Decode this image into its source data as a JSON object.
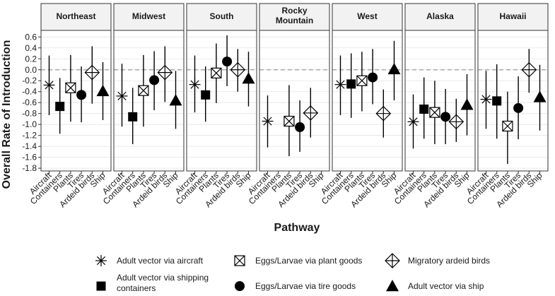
{
  "chart_data": {
    "type": "scatter",
    "subtype": "point-range faceted",
    "ylabel": "Overall Rate of Introduction",
    "xlabel": "Pathway",
    "ylim": [
      -1.85,
      0.72
    ],
    "yticks": [
      0.6,
      0.4,
      0.2,
      0.0,
      -0.2,
      -0.4,
      -0.6,
      -0.8,
      -1.0,
      -1.2,
      -1.4,
      -1.6,
      -1.8
    ],
    "ytick_labels": [
      "0.6",
      "0.4",
      "0.2",
      "0.0",
      "-0.2",
      "-0.4",
      "-0.6",
      "-0.8",
      "-1.0",
      "-1.2",
      "-1.4",
      "-1.6",
      "-1.8"
    ],
    "reference_line": 0.0,
    "categories": [
      "Aircraft",
      "Containers",
      "Plants",
      "Tires",
      "Ardeid birds",
      "Ship"
    ],
    "legend": [
      {
        "key": "aircraft",
        "label": "Adult vector via aircraft"
      },
      {
        "key": "plants",
        "label": "Eggs/Larvae via plant goods"
      },
      {
        "key": "ardeid",
        "label": "Migratory ardeid birds"
      },
      {
        "key": "containers",
        "label_lines": [
          "Adult vector via shipping",
          "containers"
        ]
      },
      {
        "key": "tires",
        "label": "Eggs/Larvae via tire goods"
      },
      {
        "key": "ship",
        "label": "Adult vector via ship"
      }
    ],
    "panels": [
      {
        "name": "Northeast",
        "points": [
          {
            "pathway": "Aircraft",
            "y": -0.28,
            "lo": -0.83,
            "hi": 0.26
          },
          {
            "pathway": "Containers",
            "y": -0.67,
            "lo": -1.17,
            "hi": -0.15
          },
          {
            "pathway": "Plants",
            "y": -0.33,
            "lo": -0.95,
            "hi": 0.27
          },
          {
            "pathway": "Tires",
            "y": -0.46,
            "lo": -0.96,
            "hi": 0.06
          },
          {
            "pathway": "Ardeid birds",
            "y": -0.05,
            "lo": -0.62,
            "hi": 0.43
          },
          {
            "pathway": "Ship",
            "y": -0.39,
            "lo": -0.92,
            "hi": 0.14
          }
        ]
      },
      {
        "name": "Midwest",
        "points": [
          {
            "pathway": "Aircraft",
            "y": -0.48,
            "lo": -1.04,
            "hi": 0.11
          },
          {
            "pathway": "Containers",
            "y": -0.86,
            "lo": -1.36,
            "hi": -0.33
          },
          {
            "pathway": "Plants",
            "y": -0.38,
            "lo": -1.04,
            "hi": 0.27
          },
          {
            "pathway": "Tires",
            "y": -0.19,
            "lo": -0.74,
            "hi": 0.34
          },
          {
            "pathway": "Ardeid birds",
            "y": -0.05,
            "lo": -0.59,
            "hi": 0.43
          },
          {
            "pathway": "Ship",
            "y": -0.56,
            "lo": -1.08,
            "hi": -0.02
          }
        ]
      },
      {
        "name": "South",
        "points": [
          {
            "pathway": "Aircraft",
            "y": -0.27,
            "lo": -0.78,
            "hi": 0.26
          },
          {
            "pathway": "Containers",
            "y": -0.46,
            "lo": -0.95,
            "hi": 0.06
          },
          {
            "pathway": "Plants",
            "y": -0.06,
            "lo": -0.61,
            "hi": 0.48
          },
          {
            "pathway": "Tires",
            "y": 0.15,
            "lo": -0.3,
            "hi": 0.63
          },
          {
            "pathway": "Ardeid birds",
            "y": 0.0,
            "lo": -0.4,
            "hi": 0.38
          },
          {
            "pathway": "Ship",
            "y": -0.16,
            "lo": -0.67,
            "hi": 0.33
          }
        ]
      },
      {
        "name_lines": [
          "Rocky",
          "Mountain"
        ],
        "points": [
          {
            "pathway": "Aircraft",
            "y": -0.94,
            "lo": -1.42,
            "hi": -0.47
          },
          {
            "pathway": "Plants",
            "y": -0.94,
            "lo": -1.58,
            "hi": -0.28
          },
          {
            "pathway": "Tires",
            "y": -1.05,
            "lo": -1.5,
            "hi": -0.56
          },
          {
            "pathway": "Ardeid birds",
            "y": -0.79,
            "lo": -1.24,
            "hi": -0.33
          }
        ]
      },
      {
        "name": "West",
        "points": [
          {
            "pathway": "Aircraft",
            "y": -0.27,
            "lo": -0.83,
            "hi": 0.26
          },
          {
            "pathway": "Containers",
            "y": -0.26,
            "lo": -0.88,
            "hi": 0.3
          },
          {
            "pathway": "Plants",
            "y": -0.2,
            "lo": -0.76,
            "hi": 0.33
          },
          {
            "pathway": "Tires",
            "y": -0.14,
            "lo": -0.63,
            "hi": 0.38
          },
          {
            "pathway": "Ardeid birds",
            "y": -0.8,
            "lo": -1.24,
            "hi": -0.36
          },
          {
            "pathway": "Ship",
            "y": 0.01,
            "lo": -0.56,
            "hi": 0.53
          }
        ]
      },
      {
        "name": "Alaska",
        "points": [
          {
            "pathway": "Aircraft",
            "y": -0.95,
            "lo": -1.44,
            "hi": -0.45
          },
          {
            "pathway": "Containers",
            "y": -0.72,
            "lo": -1.26,
            "hi": -0.14
          },
          {
            "pathway": "Plants",
            "y": -0.78,
            "lo": -1.36,
            "hi": -0.2
          },
          {
            "pathway": "Tires",
            "y": -0.86,
            "lo": -1.36,
            "hi": -0.35
          },
          {
            "pathway": "Ardeid birds",
            "y": -0.95,
            "lo": -1.32,
            "hi": -0.53
          },
          {
            "pathway": "Ship",
            "y": -0.64,
            "lo": -1.2,
            "hi": -0.08
          }
        ]
      },
      {
        "name": "Hawaii",
        "points": [
          {
            "pathway": "Aircraft",
            "y": -0.54,
            "lo": -1.08,
            "hi": -0.02
          },
          {
            "pathway": "Containers",
            "y": -0.57,
            "lo": -1.26,
            "hi": 0.1
          },
          {
            "pathway": "Plants",
            "y": -1.03,
            "lo": -1.72,
            "hi": -0.4
          },
          {
            "pathway": "Tires",
            "y": -0.7,
            "lo": -1.27,
            "hi": -0.12
          },
          {
            "pathway": "Ardeid birds",
            "y": 0.0,
            "lo": -0.42,
            "hi": 0.38
          },
          {
            "pathway": "Ship",
            "y": -0.5,
            "lo": -1.11,
            "hi": 0.09
          }
        ]
      }
    ]
  }
}
